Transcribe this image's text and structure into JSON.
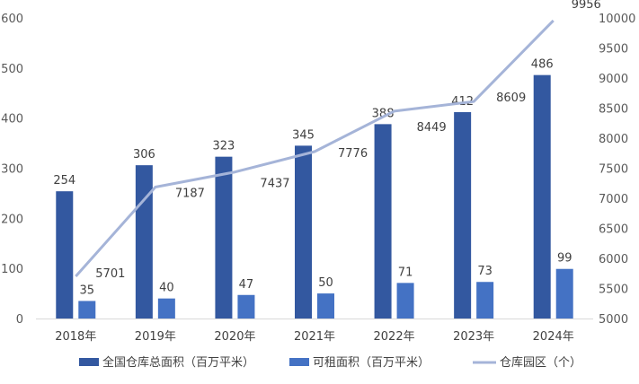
{
  "chart_data": {
    "type": "bar",
    "categories": [
      "2018年",
      "2019年",
      "2020年",
      "2021年",
      "2022年",
      "2023年",
      "2024年"
    ],
    "series": [
      {
        "name": "全国仓库总面积（百万平米）",
        "type": "bar",
        "axis": "left",
        "color": "#3358a0",
        "values": [
          254,
          306,
          323,
          345,
          388,
          412,
          486
        ]
      },
      {
        "name": "可租面积（百万平米）",
        "type": "bar",
        "axis": "left",
        "color": "#4472c4",
        "values": [
          35,
          40,
          47,
          50,
          71,
          73,
          99
        ]
      },
      {
        "name": "仓库园区（个）",
        "type": "line",
        "axis": "right",
        "color": "#a5b4d8",
        "values": [
          5701,
          7187,
          7437,
          7776,
          8449,
          8609,
          9956
        ]
      }
    ],
    "left_axis": {
      "min": 0,
      "max": 600,
      "step": 100
    },
    "right_axis": {
      "min": 5000,
      "max": 10000,
      "step": 500
    },
    "legend_position": "bottom",
    "grid": false
  }
}
